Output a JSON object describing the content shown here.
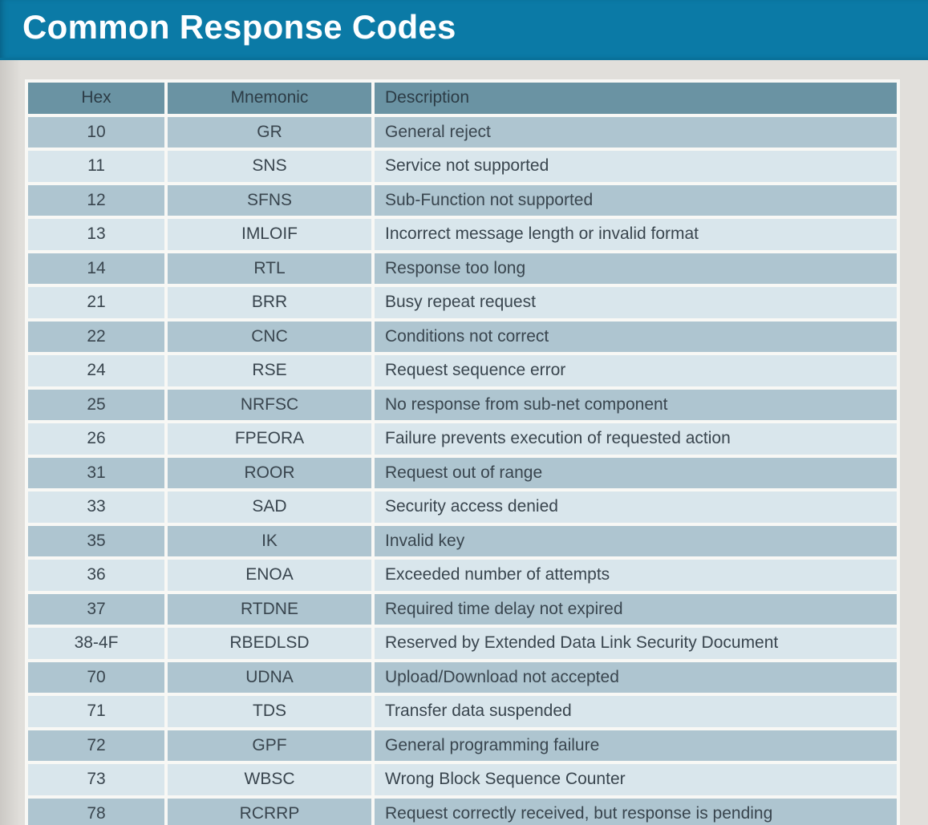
{
  "page": {
    "title": "Common Response Codes"
  },
  "colors": {
    "title_bar_bg": "#0b7aa6",
    "title_bar_edge": "#09719a",
    "page_bg": "#e1dfdb",
    "table_gap_white": "#f8f8f5",
    "header_row_bg": "#6a93a3",
    "row_dark": "#aec5d0",
    "row_light": "#d9e6ec",
    "body_text": "#39454e",
    "title_text": "#fdfeff"
  },
  "table": {
    "columns": [
      "Hex",
      "Mnemonic",
      "Description"
    ],
    "rows": [
      {
        "hex": "10",
        "mnemonic": "GR",
        "description": "General reject"
      },
      {
        "hex": "11",
        "mnemonic": "SNS",
        "description": "Service not supported"
      },
      {
        "hex": "12",
        "mnemonic": "SFNS",
        "description": "Sub-Function not supported"
      },
      {
        "hex": "13",
        "mnemonic": "IMLOIF",
        "description": "Incorrect message length or invalid format"
      },
      {
        "hex": "14",
        "mnemonic": "RTL",
        "description": "Response too long"
      },
      {
        "hex": "21",
        "mnemonic": "BRR",
        "description": "Busy repeat request"
      },
      {
        "hex": "22",
        "mnemonic": "CNC",
        "description": "Conditions not correct"
      },
      {
        "hex": "24",
        "mnemonic": "RSE",
        "description": "Request sequence error"
      },
      {
        "hex": "25",
        "mnemonic": "NRFSC",
        "description": "No response from sub-net component"
      },
      {
        "hex": "26",
        "mnemonic": "FPEORA",
        "description": "Failure prevents execution of requested action"
      },
      {
        "hex": "31",
        "mnemonic": "ROOR",
        "description": "Request out of range"
      },
      {
        "hex": "33",
        "mnemonic": "SAD",
        "description": "Security access denied"
      },
      {
        "hex": "35",
        "mnemonic": "IK",
        "description": "Invalid key"
      },
      {
        "hex": "36",
        "mnemonic": "ENOA",
        "description": "Exceeded number of attempts"
      },
      {
        "hex": "37",
        "mnemonic": "RTDNE",
        "description": "Required time delay not expired"
      },
      {
        "hex": "38-4F",
        "mnemonic": "RBEDLSD",
        "description": "Reserved by Extended Data Link Security Document"
      },
      {
        "hex": "70",
        "mnemonic": "UDNA",
        "description": "Upload/Download not accepted"
      },
      {
        "hex": "71",
        "mnemonic": "TDS",
        "description": "Transfer data suspended"
      },
      {
        "hex": "72",
        "mnemonic": "GPF",
        "description": "General programming failure"
      },
      {
        "hex": "73",
        "mnemonic": "WBSC",
        "description": "Wrong Block Sequence Counter"
      },
      {
        "hex": "78",
        "mnemonic": "RCRRP",
        "description": "Request correctly received, but response is pending"
      }
    ]
  }
}
